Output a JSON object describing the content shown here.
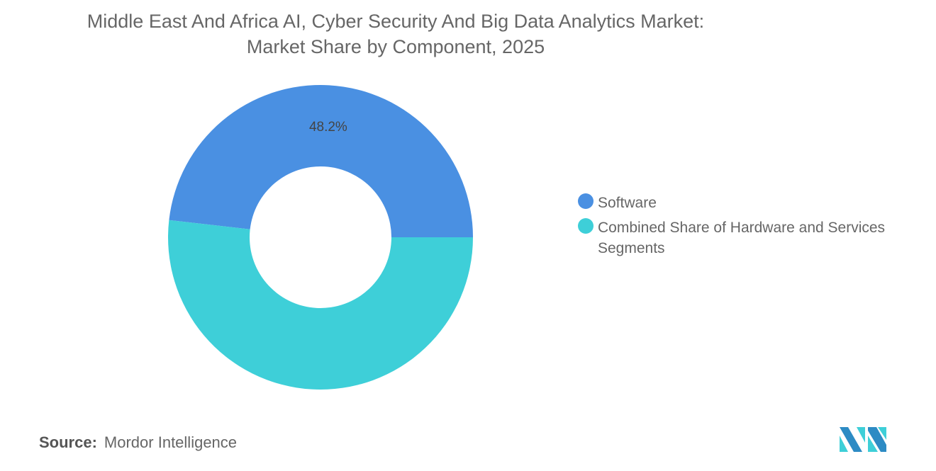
{
  "title_line1": "Middle East And Africa AI, Cyber Security And Big Data Analytics Market:",
  "title_line2": "Market Share by Component, 2025",
  "chart_data": {
    "type": "pie",
    "donut": true,
    "title": "Middle East And Africa AI, Cyber Security And Big Data Analytics Market: Market Share by Component, 2025",
    "categories": [
      "Software",
      "Combined Share of Hardware and Services Segments"
    ],
    "values": [
      48.2,
      51.8
    ],
    "data_labels": [
      "48.2%",
      ""
    ],
    "colors": [
      "#4a90e2",
      "#3ecfd8"
    ],
    "legend_position": "right"
  },
  "source_label": "Source:",
  "source_value": "Mordor Intelligence",
  "logo_text": "Mordor Intelligence"
}
